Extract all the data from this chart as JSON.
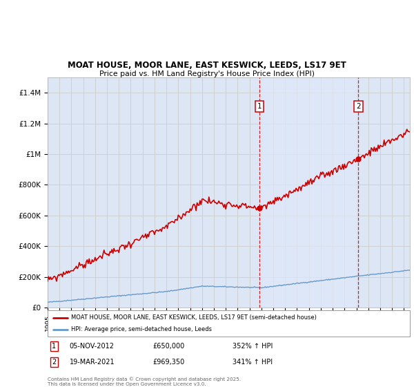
{
  "title_line1": "MOAT HOUSE, MOOR LANE, EAST KESWICK, LEEDS, LS17 9ET",
  "title_line2": "Price paid vs. HM Land Registry's House Price Index (HPI)",
  "background_color": "#dce6f5",
  "figure_bg": "#ffffff",
  "ylim": [
    0,
    1500000
  ],
  "yticks": [
    0,
    200000,
    400000,
    600000,
    800000,
    1000000,
    1200000,
    1400000
  ],
  "ytick_labels": [
    "£0",
    "£200K",
    "£400K",
    "£600K",
    "£800K",
    "£1M",
    "£1.2M",
    "£1.4M"
  ],
  "t_sale1": 2012.833,
  "sale1_price": 650000,
  "t_sale2": 2021.167,
  "sale2_price": 969350,
  "legend_property": "MOAT HOUSE, MOOR LANE, EAST KESWICK, LEEDS, LS17 9ET (semi-detached house)",
  "legend_hpi": "HPI: Average price, semi-detached house, Leeds",
  "footnote": "Contains HM Land Registry data © Crown copyright and database right 2025.\nThis data is licensed under the Open Government Licence v3.0.",
  "property_line_color": "#cc0000",
  "hpi_line_color": "#6699cc",
  "dashed_line_color": "#cc0000",
  "shaded_color": "#dce6f5",
  "grid_color": "#cccccc",
  "sale_box_color": "#cc0000",
  "xmin": 1995,
  "xmax": 2025.5
}
